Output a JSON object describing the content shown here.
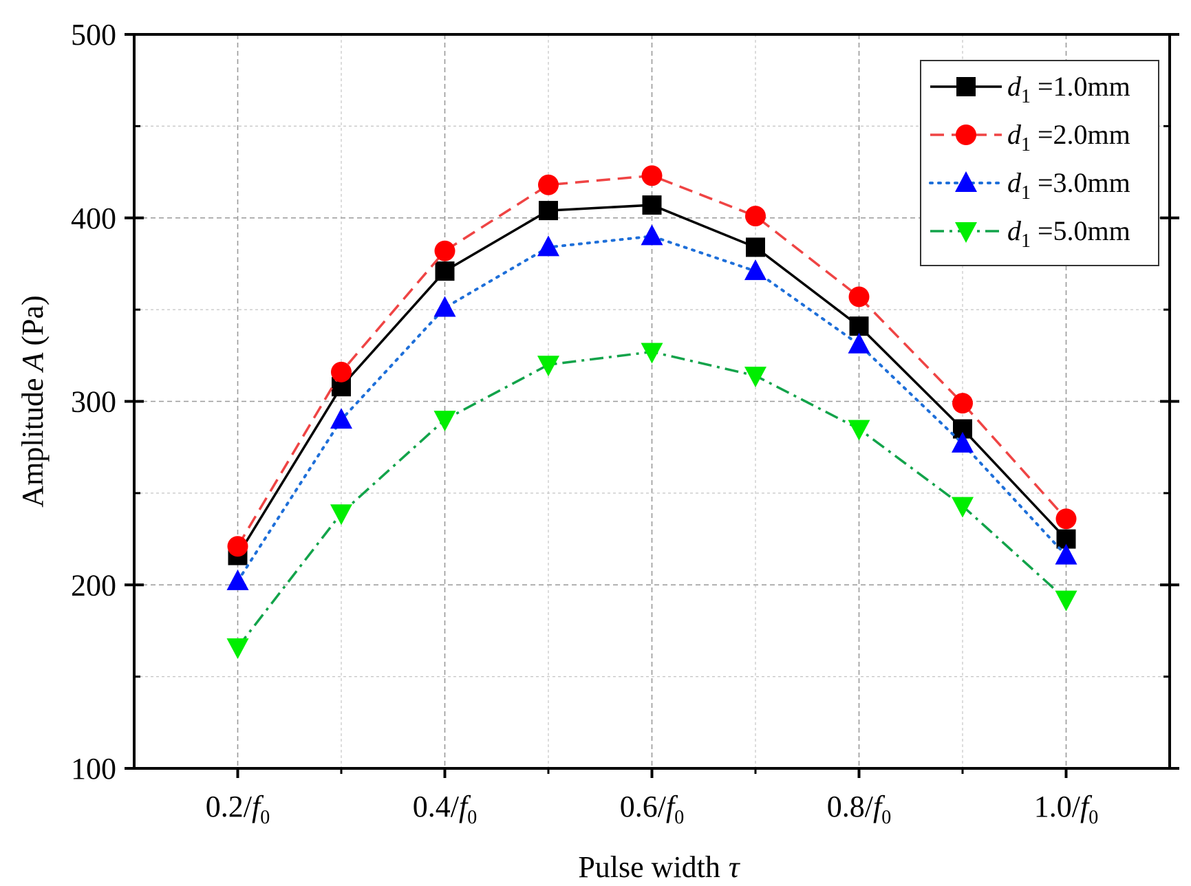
{
  "chart_data": {
    "type": "line",
    "title": "",
    "xlabel": "Pulse width",
    "xlabel_symbol": "τ",
    "ylabel_prefix": "Amplitude",
    "ylabel_symbol": "A",
    "ylabel_unit": "(Pa)",
    "x": [
      0.2,
      0.3,
      0.4,
      0.5,
      0.6,
      0.7,
      0.8,
      0.9,
      1.0
    ],
    "xlim": [
      0.1,
      1.1
    ],
    "ylim": [
      100,
      500
    ],
    "x_ticks": [
      {
        "value": 0.2,
        "num": "0.2/",
        "var": "f",
        "sub": "0"
      },
      {
        "value": 0.4,
        "num": "0.4/",
        "var": "f",
        "sub": "0"
      },
      {
        "value": 0.6,
        "num": "0.6/",
        "var": "f",
        "sub": "0"
      },
      {
        "value": 0.8,
        "num": "0.8/",
        "var": "f",
        "sub": "0"
      },
      {
        "value": 1.0,
        "num": "1.0/",
        "var": "f",
        "sub": "0"
      }
    ],
    "x_minor_grid": [
      0.3,
      0.5,
      0.7,
      0.9
    ],
    "y_ticks": [
      100,
      200,
      300,
      400,
      500
    ],
    "y_minor_grid": [
      150,
      250,
      350,
      450
    ],
    "grid": true,
    "legend_position": "top-right",
    "series": [
      {
        "name": "d1 =1.0mm",
        "label_var": "d",
        "label_sub": "1",
        "label_rest": " =1.0mm",
        "color": "#000000",
        "marker": "square",
        "dash": "solid",
        "values": [
          216,
          308,
          371,
          404,
          407,
          384,
          341,
          285,
          225
        ]
      },
      {
        "name": "d1 =2.0mm",
        "label_var": "d",
        "label_sub": "1",
        "label_rest": " =2.0mm",
        "color": "#ff0000",
        "line_color": "#ef4444",
        "marker": "circle",
        "dash": "dashed",
        "values": [
          221,
          316,
          382,
          418,
          423,
          401,
          357,
          299,
          236
        ]
      },
      {
        "name": "d1 =3.0mm",
        "label_var": "d",
        "label_sub": "1",
        "label_rest": " =3.0mm",
        "color": "#0000ff",
        "line_color": "#1e6fd9",
        "marker": "triangle-up",
        "dash": "dotted",
        "values": [
          202,
          290,
          351,
          384,
          390,
          371,
          331,
          277,
          216
        ]
      },
      {
        "name": "d1 =5.0mm",
        "label_var": "d",
        "label_sub": "1",
        "label_rest": " =5.0mm",
        "color": "#00ee00",
        "line_color": "#12a34a",
        "marker": "triangle-down",
        "dash": "dashdot",
        "values": [
          166,
          239,
          290,
          320,
          327,
          314,
          285,
          243,
          192
        ]
      }
    ]
  }
}
